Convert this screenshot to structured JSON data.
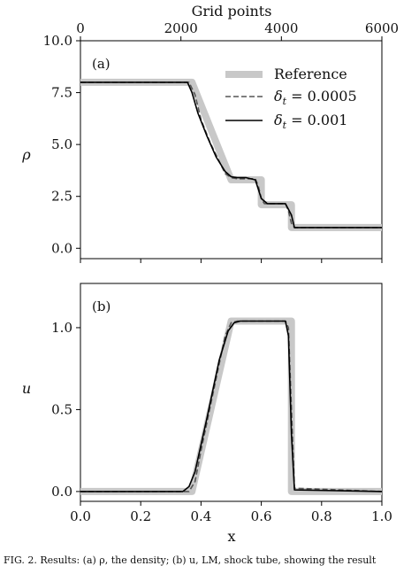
{
  "chart_data": [
    {
      "panel": "(a)",
      "type": "line",
      "xlabel": "x",
      "ylabel": "ρ",
      "xlim": [
        0,
        1
      ],
      "ylim": [
        -0.5,
        10
      ],
      "yticks": [
        0.0,
        2.5,
        5.0,
        7.5,
        10.0
      ],
      "ytick_labels": [
        "0.0",
        "2.5",
        "5.0",
        "7.5",
        "10.0"
      ],
      "top_axis": {
        "label": "Grid points",
        "ticks": [
          0,
          2000,
          4000,
          6000
        ],
        "tick_labels": [
          "0",
          "2000",
          "4000",
          "6000"
        ],
        "range": [
          0,
          6000
        ]
      },
      "legend": {
        "location": "upper right",
        "entries": [
          {
            "label": "Reference",
            "style": "thick light gray"
          },
          {
            "label": "δt = 0.0005",
            "sym": "δ",
            "sub": "t",
            "rest": " = 0.0005",
            "style": "dashed dark gray"
          },
          {
            "label": "δt = 0.001",
            "sym": "δ",
            "sub": "t",
            "rest": " = 0.001",
            "style": "solid black"
          }
        ]
      },
      "series": [
        {
          "name": "Reference",
          "color": "#c8c8c8",
          "x": [
            0,
            0.37,
            0.5,
            0.5,
            0.6,
            0.6,
            0.7,
            0.7,
            1.0
          ],
          "y": [
            8.0,
            8.0,
            3.3,
            3.3,
            3.3,
            2.1,
            2.1,
            1.0,
            1.0
          ]
        },
        {
          "name": "δt = 0.0005",
          "color": "#555555",
          "x": [
            0,
            0.36,
            0.38,
            0.4,
            0.43,
            0.46,
            0.48,
            0.5,
            0.52,
            0.58,
            0.59,
            0.6,
            0.61,
            0.68,
            0.69,
            0.7,
            0.71,
            1.0
          ],
          "y": [
            8.0,
            8.0,
            7.4,
            6.2,
            5.1,
            4.2,
            3.6,
            3.4,
            3.35,
            3.35,
            3.0,
            2.4,
            2.15,
            2.15,
            1.8,
            1.2,
            1.0,
            1.0
          ]
        },
        {
          "name": "δt = 0.001",
          "color": "#000000",
          "x": [
            0,
            0.355,
            0.37,
            0.39,
            0.42,
            0.45,
            0.48,
            0.5,
            0.52,
            0.55,
            0.58,
            0.6,
            0.62,
            0.68,
            0.7,
            0.71,
            1.0
          ],
          "y": [
            8.0,
            8.0,
            7.5,
            6.5,
            5.4,
            4.4,
            3.7,
            3.45,
            3.4,
            3.4,
            3.3,
            2.4,
            2.15,
            2.15,
            1.6,
            1.0,
            1.0
          ]
        }
      ]
    },
    {
      "panel": "(b)",
      "type": "line",
      "xlabel": "x",
      "ylabel": "u",
      "xlim": [
        0,
        1
      ],
      "ylim": [
        -0.06,
        1.27
      ],
      "xticks": [
        0.0,
        0.2,
        0.4,
        0.6,
        0.8,
        1.0
      ],
      "xtick_labels": [
        "0.0",
        "0.2",
        "0.4",
        "0.6",
        "0.8",
        "1.0"
      ],
      "yticks": [
        0.0,
        0.5,
        1.0
      ],
      "ytick_labels": [
        "0.0",
        "0.5",
        "1.0"
      ],
      "series": [
        {
          "name": "Reference",
          "color": "#c8c8c8",
          "x": [
            0,
            0.37,
            0.5,
            0.7,
            0.7,
            1.0
          ],
          "y": [
            0,
            0,
            1.04,
            1.04,
            0,
            0
          ]
        },
        {
          "name": "δt = 0.0005",
          "color": "#555555",
          "x": [
            0,
            0.36,
            0.38,
            0.4,
            0.44,
            0.48,
            0.5,
            0.52,
            0.68,
            0.69,
            0.7,
            0.71,
            1.0
          ],
          "y": [
            0,
            0,
            0.06,
            0.25,
            0.6,
            0.95,
            1.03,
            1.04,
            1.04,
            1.0,
            0.5,
            0.02,
            0
          ]
        },
        {
          "name": "δt = 0.001",
          "color": "#000000",
          "x": [
            0,
            0.34,
            0.36,
            0.38,
            0.42,
            0.46,
            0.49,
            0.51,
            0.53,
            0.68,
            0.69,
            0.7,
            0.71,
            1.0
          ],
          "y": [
            0,
            0,
            0.03,
            0.12,
            0.45,
            0.8,
            0.98,
            1.03,
            1.04,
            1.04,
            0.95,
            0.35,
            0.01,
            0
          ]
        }
      ]
    }
  ],
  "caption": "FIG. 2. Results: (a) ρ, the density; (b) u, LM, shock tube, showing the result"
}
